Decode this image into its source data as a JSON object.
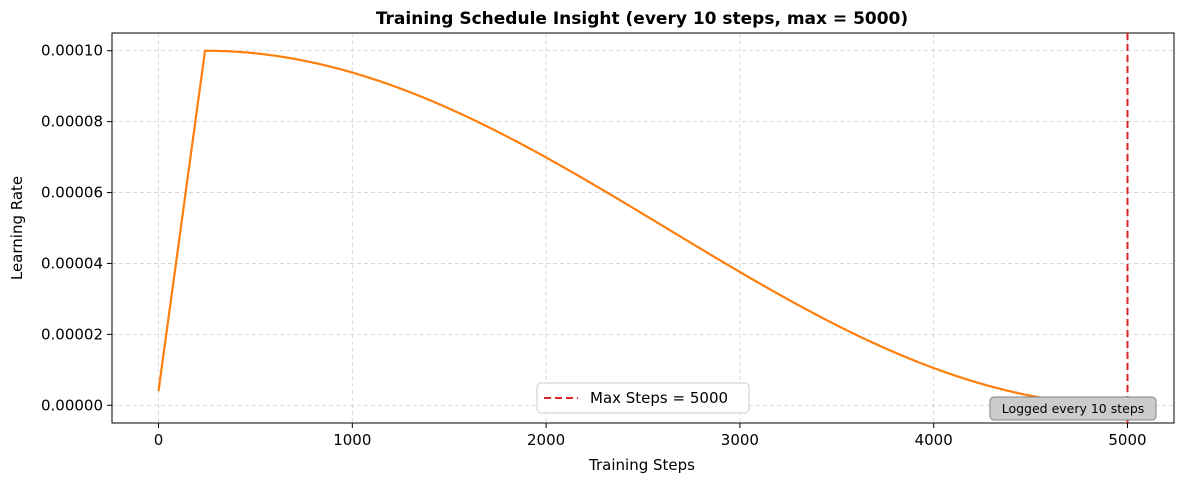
{
  "chart_data": {
    "type": "line",
    "title": "Training Schedule Insight (every 10 steps, max = 5000)",
    "xlabel": "Training Steps",
    "ylabel": "Learning Rate",
    "xlim": [
      -240,
      5240
    ],
    "ylim": [
      -5e-06,
      0.000105
    ],
    "x_ticks": [
      0,
      1000,
      2000,
      3000,
      4000,
      5000
    ],
    "y_ticks": [
      0.0,
      2e-05,
      4e-05,
      6e-05,
      8e-05,
      0.0001
    ],
    "x_tick_labels": [
      "0",
      "1000",
      "2000",
      "3000",
      "4000",
      "5000"
    ],
    "y_tick_labels": [
      "0.00000",
      "0.00002",
      "0.00004",
      "0.00006",
      "0.00008",
      "0.00010"
    ],
    "grid": true,
    "legend_position": "bottom-center",
    "series": [
      {
        "color": "#ff7f0e",
        "x": [
          0,
          240,
          500,
          1000,
          1500,
          2000,
          2500,
          3000,
          3500,
          4000,
          4500,
          5000
        ],
        "y": [
          4e-06,
          0.0001,
          9.93e-05,
          9.41e-05,
          8.45e-05,
          7.11e-05,
          5.48e-05,
          3.76e-05,
          2.19e-05,
          1e-05,
          2.6e-06,
          0.0
        ]
      }
    ],
    "vline": {
      "x": 5000,
      "label": "Max Steps = 5000",
      "color": "#d62728",
      "style": "dashed"
    },
    "annotation": {
      "text": "Logged every 10 steps",
      "position": "bottom-right"
    }
  }
}
